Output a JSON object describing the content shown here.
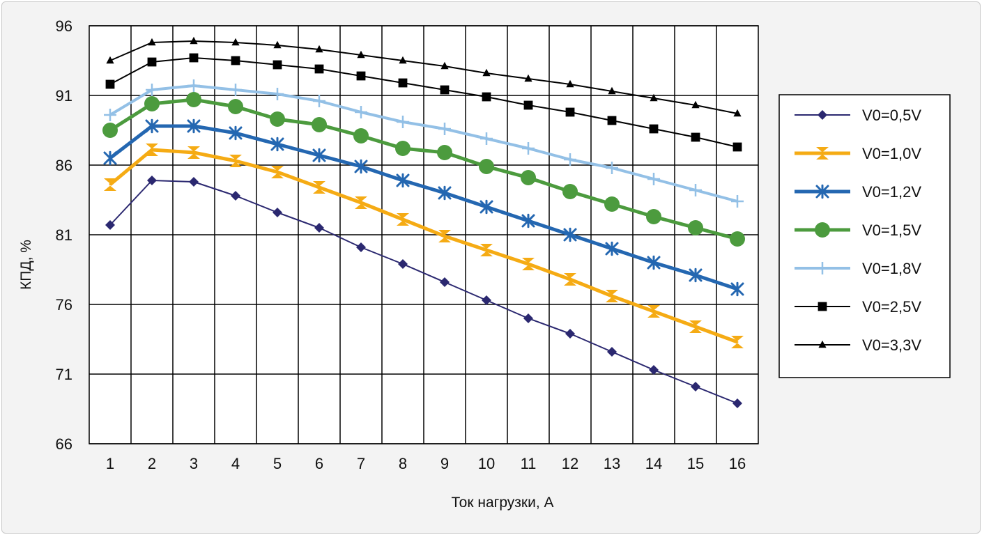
{
  "chart_data": {
    "type": "line",
    "title": "",
    "xlabel": "Ток нагрузки, А",
    "ylabel": "КПД, %",
    "categories": [
      "1",
      "2",
      "3",
      "4",
      "5",
      "6",
      "7",
      "8",
      "9",
      "10",
      "11",
      "12",
      "13",
      "14",
      "15",
      "16"
    ],
    "ylim": [
      66,
      96
    ],
    "yticks": [
      "66",
      "71",
      "76",
      "81",
      "86",
      "91",
      "96"
    ],
    "grid": true,
    "legend_position": "right",
    "series": [
      {
        "name": "V0=0,5V",
        "color": "#2b2870",
        "marker": "diamond",
        "values": [
          81.7,
          84.9,
          84.8,
          83.8,
          82.6,
          81.5,
          80.1,
          78.9,
          77.6,
          76.3,
          75.0,
          73.9,
          72.6,
          71.3,
          70.1,
          68.9
        ]
      },
      {
        "name": "V0=1,0V",
        "color": "#f5ab14",
        "marker": "hourglass",
        "values": [
          84.6,
          87.1,
          86.9,
          86.3,
          85.5,
          84.4,
          83.3,
          82.1,
          80.9,
          79.9,
          78.9,
          77.8,
          76.6,
          75.5,
          74.4,
          73.3
        ]
      },
      {
        "name": "V0=1,2V",
        "color": "#2467b1",
        "marker": "asterisk",
        "values": [
          86.5,
          88.8,
          88.8,
          88.3,
          87.5,
          86.7,
          85.9,
          84.9,
          84.0,
          83.0,
          82.0,
          81.0,
          80.0,
          79.0,
          78.1,
          77.1
        ]
      },
      {
        "name": "V0=1,5V",
        "color": "#4c9b3e",
        "marker": "circle",
        "values": [
          88.5,
          90.4,
          90.7,
          90.2,
          89.3,
          88.9,
          88.1,
          87.2,
          86.9,
          85.9,
          85.1,
          84.1,
          83.2,
          82.3,
          81.5,
          80.7
        ]
      },
      {
        "name": "V0=1,8V",
        "color": "#93c0e6",
        "marker": "plus",
        "values": [
          89.6,
          91.4,
          91.7,
          91.4,
          91.1,
          90.6,
          89.8,
          89.1,
          88.6,
          87.9,
          87.2,
          86.4,
          85.8,
          85.0,
          84.2,
          83.4
        ]
      },
      {
        "name": "V0=2,5V",
        "color": "#000000",
        "marker": "square",
        "values": [
          91.8,
          93.4,
          93.7,
          93.5,
          93.2,
          92.9,
          92.4,
          91.9,
          91.4,
          90.9,
          90.3,
          89.8,
          89.2,
          88.6,
          88.0,
          87.3
        ]
      },
      {
        "name": "V0=3,3V",
        "color": "#000000",
        "marker": "triangle",
        "values": [
          93.5,
          94.8,
          94.9,
          94.8,
          94.6,
          94.3,
          93.9,
          93.5,
          93.1,
          92.6,
          92.2,
          91.8,
          91.3,
          90.8,
          90.3,
          89.7
        ]
      }
    ]
  }
}
